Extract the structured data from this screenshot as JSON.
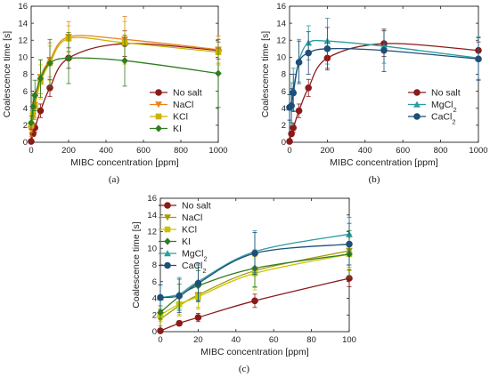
{
  "chart_data": [
    {
      "type": "line",
      "caption": "(a)",
      "xlabel": "MIBC concentration [ppm]",
      "ylabel": "Coalescence time [s]",
      "xlim": [
        0,
        1000
      ],
      "ylim": [
        0,
        16
      ],
      "xticks": [
        "0",
        "200",
        "400",
        "600",
        "800",
        "1000"
      ],
      "yticks": [
        "0",
        "2",
        "4",
        "6",
        "8",
        "10",
        "12",
        "14",
        "16"
      ],
      "legend_position": "center-right",
      "series": [
        {
          "name": "No salt",
          "color": "#8b1a1a",
          "marker": "circle",
          "x": [
            0,
            10,
            20,
            50,
            100,
            200,
            500,
            1000
          ],
          "y": [
            0.1,
            1.0,
            1.7,
            3.7,
            6.4,
            9.9,
            11.6,
            10.8
          ],
          "err": [
            0.1,
            0.3,
            0.5,
            0.8,
            1.0,
            1.2,
            1.5,
            1.0
          ]
        },
        {
          "name": "NaCl",
          "color": "#e8821e",
          "marker": "triangle-down",
          "x": [
            0,
            10,
            20,
            50,
            100,
            200,
            500,
            1000
          ],
          "y": [
            1.5,
            3.1,
            4.4,
            7.7,
            9.7,
            12.4,
            12.1,
            10.9
          ],
          "err": [
            0.8,
            1.2,
            1.5,
            2.0,
            2.0,
            1.8,
            2.7,
            1.6
          ]
        },
        {
          "name": "KCl",
          "color": "#c9b400",
          "marker": "square",
          "x": [
            0,
            10,
            20,
            50,
            100,
            200,
            500,
            1000
          ],
          "y": [
            2.0,
            3.3,
            4.2,
            7.1,
            9.3,
            12.2,
            11.7,
            10.6
          ],
          "err": [
            0.8,
            1.2,
            1.5,
            2.0,
            2.0,
            1.5,
            2.5,
            1.5
          ]
        },
        {
          "name": "KI",
          "color": "#2e7d1f",
          "marker": "diamond",
          "x": [
            0,
            10,
            20,
            50,
            100,
            200,
            500,
            1000
          ],
          "y": [
            2.3,
            4.2,
            5.5,
            7.5,
            9.3,
            9.9,
            9.6,
            8.1
          ],
          "err": [
            0.8,
            1.5,
            1.8,
            2.2,
            2.8,
            3.0,
            3.0,
            4.0
          ]
        }
      ]
    },
    {
      "type": "line",
      "caption": "(b)",
      "xlabel": "MIBC concentration [ppm]",
      "ylabel": "Coalescence time [s]",
      "xlim": [
        0,
        1000
      ],
      "ylim": [
        0,
        16
      ],
      "xticks": [
        "0",
        "200",
        "400",
        "600",
        "800",
        "1000"
      ],
      "yticks": [
        "0",
        "2",
        "4",
        "6",
        "8",
        "10",
        "12",
        "14",
        "16"
      ],
      "legend_position": "center-right",
      "series": [
        {
          "name": "No salt",
          "color": "#8b1a1a",
          "marker": "circle",
          "x": [
            0,
            10,
            20,
            50,
            100,
            200,
            500,
            1000
          ],
          "y": [
            0.1,
            1.0,
            1.7,
            3.7,
            6.4,
            9.9,
            11.6,
            10.8
          ],
          "err": [
            0.1,
            0.3,
            0.5,
            0.8,
            1.0,
            1.2,
            1.5,
            1.0
          ]
        },
        {
          "name": "MgCl",
          "name_sub": "2",
          "color": "#2a9da0",
          "marker": "triangle",
          "x": [
            0,
            10,
            20,
            50,
            100,
            200,
            500,
            1000
          ],
          "y": [
            4.1,
            4.5,
            6.2,
            9.6,
            11.7,
            11.9,
            11.3,
            9.9
          ],
          "err": [
            1.5,
            2.5,
            2.5,
            2.5,
            2.0,
            2.7,
            2.0,
            2.5
          ]
        },
        {
          "name": "CaCl",
          "name_sub": "2",
          "color": "#1f4e79",
          "marker": "circle",
          "x": [
            0,
            10,
            20,
            50,
            100,
            200,
            500,
            1000
          ],
          "y": [
            4.1,
            4.3,
            5.8,
            9.4,
            10.5,
            11.0,
            10.8,
            9.8
          ],
          "err": [
            1.5,
            2.0,
            2.2,
            2.5,
            2.5,
            2.5,
            2.5,
            2.5
          ]
        }
      ]
    },
    {
      "type": "line",
      "caption": "(c)",
      "xlabel": "MIBC concentration [ppm]",
      "ylabel": "Coalescence time [s]",
      "xlim": [
        0,
        100
      ],
      "ylim": [
        0,
        16
      ],
      "xticks": [
        "0",
        "20",
        "40",
        "60",
        "80",
        "100"
      ],
      "yticks": [
        "0",
        "2",
        "4",
        "6",
        "8",
        "10",
        "12",
        "14",
        "16"
      ],
      "legend_position": "top-left",
      "series": [
        {
          "name": "No salt",
          "color": "#8b1a1a",
          "marker": "circle",
          "x": [
            0,
            10,
            20,
            50,
            100
          ],
          "y": [
            0.1,
            1.0,
            1.7,
            3.7,
            6.4
          ],
          "err": [
            0.1,
            0.3,
            0.5,
            0.8,
            1.0
          ]
        },
        {
          "name": "NaCl",
          "color": "#a89a00",
          "marker": "triangle-down",
          "x": [
            0,
            10,
            20,
            50,
            100
          ],
          "y": [
            1.5,
            3.1,
            4.4,
            7.3,
            9.7
          ],
          "err": [
            0.8,
            1.2,
            1.5,
            2.0,
            2.0
          ]
        },
        {
          "name": "KCl",
          "color": "#c9c400",
          "marker": "square",
          "x": [
            0,
            10,
            20,
            50,
            100
          ],
          "y": [
            2.0,
            3.3,
            4.2,
            7.0,
            9.3
          ],
          "err": [
            0.8,
            1.2,
            1.5,
            2.0,
            2.0
          ]
        },
        {
          "name": "KI",
          "color": "#2e7d1f",
          "marker": "diamond",
          "x": [
            0,
            10,
            20,
            50,
            100
          ],
          "y": [
            2.3,
            4.2,
            5.5,
            7.6,
            9.3
          ],
          "err": [
            0.8,
            1.5,
            1.8,
            2.2,
            2.8
          ]
        },
        {
          "name": "MgCl",
          "name_sub": "2",
          "color": "#2a9da0",
          "marker": "triangle",
          "x": [
            0,
            10,
            20,
            50,
            100
          ],
          "y": [
            4.1,
            4.5,
            6.0,
            9.6,
            11.7
          ],
          "err": [
            1.5,
            2.0,
            2.2,
            2.5,
            2.0
          ]
        },
        {
          "name": "CaCl",
          "name_sub": "2",
          "color": "#1f4e79",
          "marker": "circle",
          "x": [
            0,
            10,
            20,
            50,
            100
          ],
          "y": [
            4.1,
            4.3,
            5.8,
            9.4,
            10.5
          ],
          "err": [
            1.5,
            2.0,
            2.2,
            2.5,
            2.5
          ]
        }
      ]
    }
  ]
}
